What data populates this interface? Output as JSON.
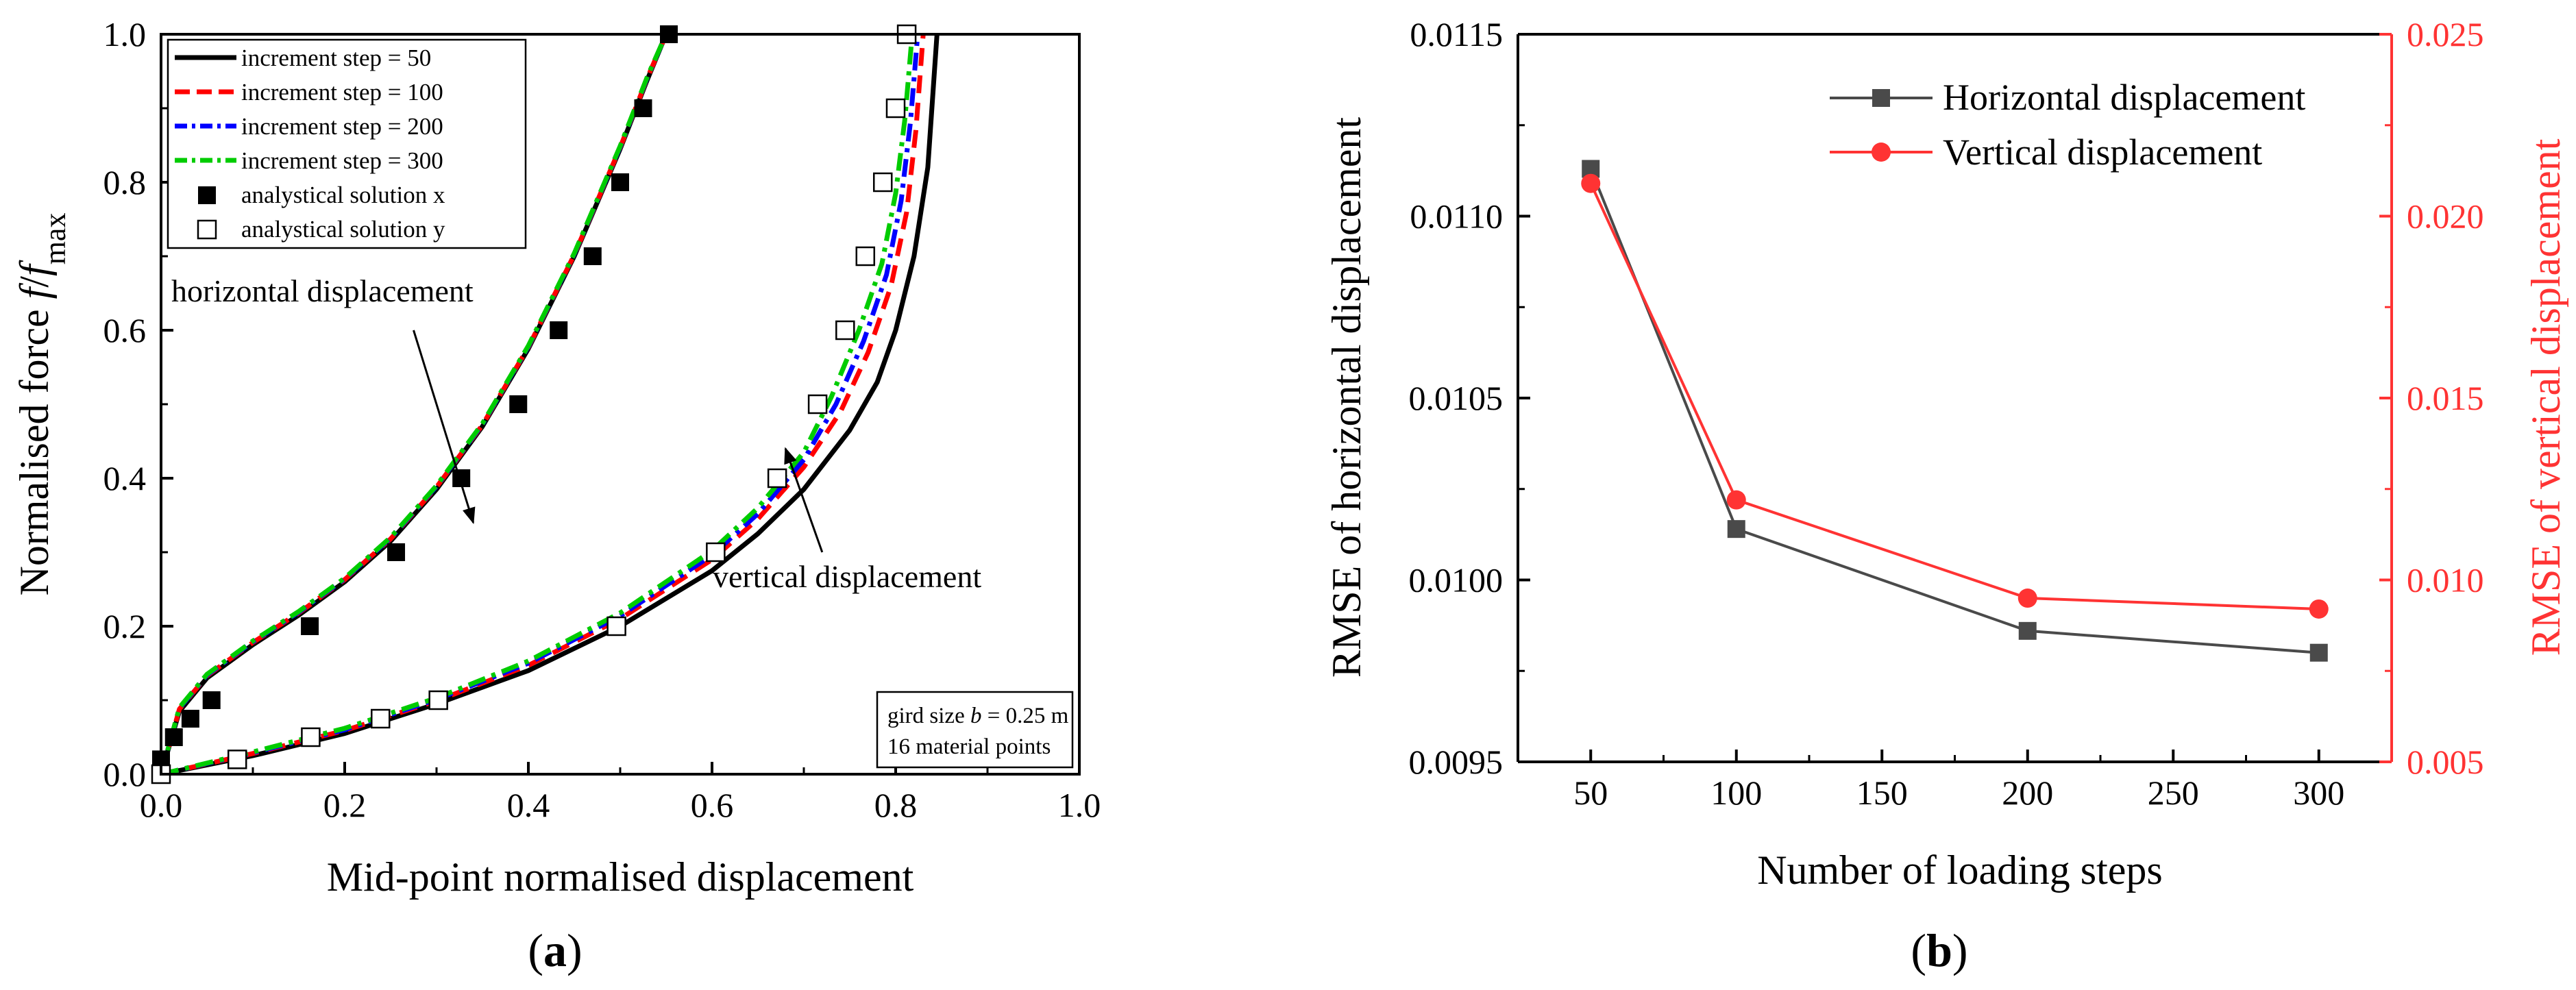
{
  "chart_data": [
    {
      "type": "line",
      "panel_label": "a",
      "title": "",
      "xlabel": "Mid-point normalised displacement",
      "ylabel": {
        "prefix": "Normalised force ",
        "f1": "f",
        "slash": "/",
        "f2": "f",
        "sub": "max"
      },
      "xlim": [
        0.0,
        1.0
      ],
      "ylim": [
        0.0,
        1.0
      ],
      "xticks": [
        "0.0",
        "0.2",
        "0.4",
        "0.6",
        "0.8",
        "1.0"
      ],
      "yticks": [
        "0.0",
        "0.2",
        "0.4",
        "0.6",
        "0.8",
        "1.0"
      ],
      "legend_position": "top-left",
      "grid": false,
      "series": [
        {
          "name": "increment step = 50",
          "style": "solid",
          "color": "#000000",
          "curves": [
            {
              "x": [
                0,
                0.02,
                0.05,
                0.1,
                0.15,
                0.2,
                0.25,
                0.3,
                0.35,
                0.4,
                0.45,
                0.5,
                0.53,
                0.55
              ],
              "y": [
                0,
                0.085,
                0.13,
                0.175,
                0.215,
                0.26,
                0.315,
                0.385,
                0.47,
                0.575,
                0.7,
                0.845,
                0.94,
                1.0
              ]
            },
            {
              "x": [
                0,
                0.1,
                0.2,
                0.3,
                0.4,
                0.5,
                0.6,
                0.65,
                0.7,
                0.75,
                0.78,
                0.8,
                0.82,
                0.835,
                0.845
              ],
              "y": [
                0,
                0.025,
                0.055,
                0.095,
                0.14,
                0.2,
                0.275,
                0.325,
                0.385,
                0.465,
                0.53,
                0.6,
                0.7,
                0.82,
                1.0
              ]
            }
          ]
        },
        {
          "name": "increment step = 100",
          "style": "dashed",
          "color": "#ff0000",
          "curves": [
            {
              "x": [
                0,
                0.02,
                0.05,
                0.1,
                0.15,
                0.2,
                0.25,
                0.3,
                0.35,
                0.4,
                0.45,
                0.5,
                0.53,
                0.55
              ],
              "y": [
                0,
                0.088,
                0.133,
                0.178,
                0.218,
                0.263,
                0.318,
                0.388,
                0.472,
                0.577,
                0.702,
                0.847,
                0.942,
                1.0
              ]
            },
            {
              "x": [
                0,
                0.1,
                0.2,
                0.3,
                0.4,
                0.5,
                0.6,
                0.65,
                0.7,
                0.74,
                0.77,
                0.795,
                0.812,
                0.822,
                0.83
              ],
              "y": [
                0,
                0.028,
                0.059,
                0.099,
                0.147,
                0.21,
                0.29,
                0.345,
                0.415,
                0.49,
                0.57,
                0.66,
                0.76,
                0.87,
                1.0
              ]
            }
          ]
        },
        {
          "name": "increment step = 200",
          "style": "dashdot",
          "color": "#0000ff",
          "curves": [
            {
              "x": [
                0,
                0.02,
                0.05,
                0.1,
                0.15,
                0.2,
                0.25,
                0.3,
                0.35,
                0.4,
                0.45,
                0.5,
                0.53,
                0.55
              ],
              "y": [
                0,
                0.089,
                0.134,
                0.179,
                0.219,
                0.264,
                0.319,
                0.389,
                0.473,
                0.578,
                0.703,
                0.848,
                0.943,
                1.0
              ]
            },
            {
              "x": [
                0,
                0.1,
                0.2,
                0.3,
                0.4,
                0.5,
                0.6,
                0.65,
                0.7,
                0.735,
                0.765,
                0.79,
                0.806,
                0.816,
                0.824
              ],
              "y": [
                0,
                0.029,
                0.06,
                0.101,
                0.15,
                0.214,
                0.296,
                0.352,
                0.425,
                0.5,
                0.585,
                0.675,
                0.775,
                0.88,
                1.0
              ]
            }
          ]
        },
        {
          "name": "increment step = 300",
          "style": "dashdot",
          "color": "#00cc00",
          "curves": [
            {
              "x": [
                0,
                0.02,
                0.05,
                0.1,
                0.15,
                0.2,
                0.25,
                0.3,
                0.35,
                0.4,
                0.45,
                0.5,
                0.53,
                0.55
              ],
              "y": [
                0,
                0.09,
                0.135,
                0.18,
                0.22,
                0.265,
                0.32,
                0.39,
                0.474,
                0.579,
                0.704,
                0.849,
                0.944,
                1.0
              ]
            },
            {
              "x": [
                0,
                0.1,
                0.2,
                0.3,
                0.4,
                0.5,
                0.6,
                0.65,
                0.7,
                0.73,
                0.76,
                0.785,
                0.8,
                0.81,
                0.818
              ],
              "y": [
                0,
                0.03,
                0.062,
                0.103,
                0.153,
                0.218,
                0.302,
                0.36,
                0.435,
                0.51,
                0.6,
                0.69,
                0.785,
                0.885,
                1.0
              ]
            }
          ]
        },
        {
          "name": "analystical solution x",
          "marker": "filled-square",
          "color": "#000000",
          "x": [
            0.0,
            0.014,
            0.032,
            0.055,
            0.162,
            0.256,
            0.327,
            0.389,
            0.433,
            0.47,
            0.5,
            0.525,
            0.553
          ],
          "y": [
            0.02,
            0.05,
            0.075,
            0.1,
            0.2,
            0.3,
            0.4,
            0.5,
            0.6,
            0.7,
            0.8,
            0.9,
            1.0
          ]
        },
        {
          "name": "analystical solution y",
          "marker": "open-square",
          "color": "#000000",
          "x": [
            0.0,
            0.083,
            0.163,
            0.239,
            0.302,
            0.496,
            0.604,
            0.671,
            0.715,
            0.745,
            0.767,
            0.786,
            0.8,
            0.812
          ],
          "y": [
            0.0,
            0.02,
            0.05,
            0.075,
            0.1,
            0.2,
            0.3,
            0.4,
            0.5,
            0.6,
            0.7,
            0.8,
            0.9,
            1.0
          ]
        }
      ],
      "annotations": [
        {
          "text": "horizontal displacement",
          "anchor": [
            0.12,
            0.645
          ],
          "arrow_tail": [
            0.275,
            0.6
          ],
          "arrow_head": [
            0.34,
            0.34
          ]
        },
        {
          "text": "vertical displacement",
          "anchor": [
            0.6,
            0.255
          ],
          "arrow_tail": [
            0.72,
            0.3
          ],
          "arrow_head": [
            0.68,
            0.44
          ]
        }
      ],
      "note_box": {
        "line1_prefix": "gird size ",
        "line1_var": "b",
        "line1_suffix": " = 0.25 m",
        "line2": "16 material points"
      }
    },
    {
      "type": "line",
      "panel_label": "b",
      "title": "",
      "xlabel": "Number of loading steps",
      "ylabel_left": "RMSE of horizontal displacement",
      "ylabel_right": "RMSE of vertical displacement",
      "xlim": [
        25,
        325
      ],
      "ylim_left": [
        0.0095,
        0.0115
      ],
      "ylim_right": [
        0.005,
        0.025
      ],
      "xticks": [
        "50",
        "100",
        "150",
        "200",
        "250",
        "300"
      ],
      "yticks_left": [
        "0.0095",
        "0.0100",
        "0.0105",
        "0.0110",
        "0.0115"
      ],
      "yticks_right": [
        "0.005",
        "0.010",
        "0.015",
        "0.020",
        "0.025"
      ],
      "right_axis_color": "#ff3333",
      "legend_position": "top-right",
      "grid": false,
      "series": [
        {
          "name": "Horizontal displacement",
          "axis": "left",
          "marker": "square",
          "color": "#4a4a4a",
          "x": [
            50,
            100,
            200,
            300
          ],
          "y": [
            0.01113,
            0.01014,
            0.00986,
            0.0098
          ]
        },
        {
          "name": "Vertical displacement",
          "axis": "right",
          "marker": "circle",
          "color": "#ff3333",
          "x": [
            50,
            100,
            200,
            300
          ],
          "y": [
            0.0209,
            0.0122,
            0.0095,
            0.0092
          ]
        }
      ]
    }
  ]
}
